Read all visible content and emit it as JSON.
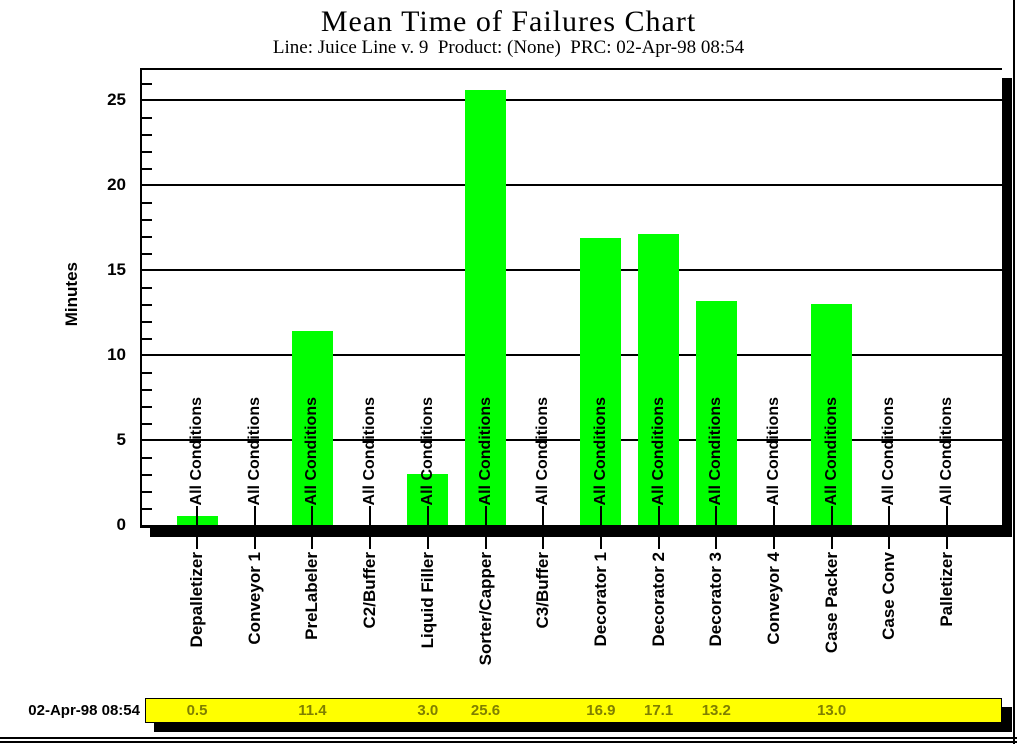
{
  "header": {
    "title": "Mean Time of Failures Chart",
    "subtitle": "Line: Juice Line v. 9  Product: (None)  PRC: 02-Apr-98 08:54"
  },
  "footer": {
    "timestamp": "02-Apr-98 08:54"
  },
  "chart_data": {
    "type": "bar",
    "title": "Mean Time of Failures Chart",
    "subtitle": "Line: Juice Line v. 9  Product: (None)  PRC: 02-Apr-98 08:54",
    "ylabel": "Minutes",
    "ylim": [
      0,
      26.8
    ],
    "yticks": [
      0,
      5,
      10,
      15,
      20,
      25
    ],
    "minor_tick_interval": 1,
    "grid": true,
    "bar_annotation": "All Conditions",
    "categories": [
      "Depalletizer",
      "Conveyor 1",
      "PreLabeler",
      "C2/Buffer",
      "Liquid Filler",
      "Sorter/Capper",
      "C3/Buffer",
      "Decorator 1",
      "Decorator 2",
      "Decorator 3",
      "Conveyor 4",
      "Case Packer",
      "Case Conv",
      "Palletizer"
    ],
    "values": [
      0.5,
      null,
      11.4,
      null,
      3.0,
      25.6,
      null,
      16.9,
      17.1,
      13.2,
      null,
      13.0,
      null,
      null
    ],
    "footer_value_labels": [
      "0.5",
      "",
      "11.4",
      "",
      "3.0",
      "25.6",
      "",
      "16.9",
      "17.1",
      "13.2",
      "",
      "13.0",
      "",
      ""
    ],
    "colors": {
      "bar": "#00ff00",
      "footer_bg": "#ffff00",
      "footer_text": "#7f7f00",
      "axis": "#000000"
    },
    "legend": null
  }
}
